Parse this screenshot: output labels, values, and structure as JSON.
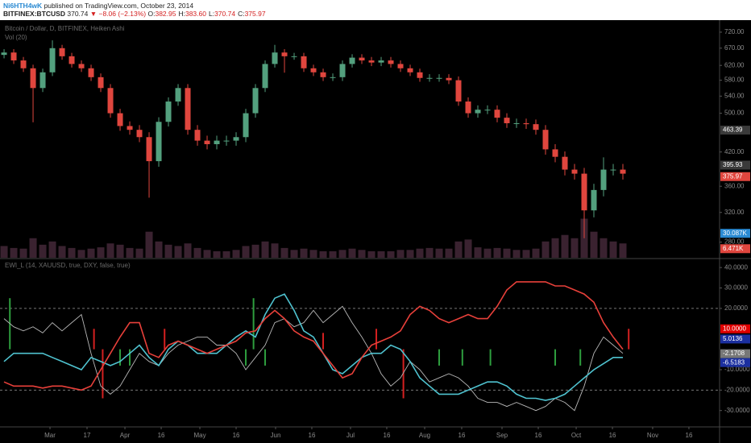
{
  "header": {
    "author": "Ni6HTH4wK",
    "published": "published on TradingView.com, October 23, 2014",
    "symbol": "BITFINEX:BTCUSD",
    "last": "370.74",
    "change": "▼ −8.06 (−2.13%)",
    "ohlc": [
      {
        "label": "O:",
        "value": "382.95"
      },
      {
        "label": "H:",
        "value": "383.60"
      },
      {
        "label": "L:",
        "value": "370.74"
      },
      {
        "label": "C:",
        "value": "375.97"
      }
    ]
  },
  "chart_data": [
    {
      "type": "candlestick",
      "title": "Bitcoin / Dollar, D, BITFINEX, Heiken Ashi",
      "volume_title": "Vol (20)",
      "up_color": "#53a07e",
      "down_color": "#e0463e",
      "log_scale": true,
      "xlim": [
        -0.42,
        74
      ],
      "ylim": [
        261,
        760
      ],
      "yticks": [
        {
          "value": 280,
          "label": "280.00"
        },
        {
          "value": 320,
          "label": "320.00"
        },
        {
          "value": 360,
          "label": "360.00"
        },
        {
          "value": 420,
          "label": "420.00"
        },
        {
          "value": 500,
          "label": "500.00"
        },
        {
          "value": 540,
          "label": "540.00"
        },
        {
          "value": 580,
          "label": "580.00"
        },
        {
          "value": 620,
          "label": "620.00"
        },
        {
          "value": 670,
          "label": "670.00"
        },
        {
          "value": 720,
          "label": "720.00"
        }
      ],
      "open": [
        650,
        657,
        634,
        612,
        560,
        601,
        670,
        646,
        624,
        612,
        588,
        560,
        500,
        472,
        464,
        449,
        403,
        481,
        527,
        560,
        464,
        442,
        435,
        442,
        442,
        449,
        500,
        560,
        624,
        657,
        646,
        646,
        612,
        601,
        588,
        588,
        624,
        642,
        634,
        628,
        634,
        624,
        612,
        601,
        586,
        586,
        586,
        580,
        527,
        500,
        508,
        508,
        490,
        478,
        478,
        476,
        464,
        425,
        411,
        388,
        381,
        323,
        354,
        388,
        388
      ],
      "high": [
        667,
        667,
        644,
        622,
        611,
        694,
        680,
        656,
        634,
        622,
        598,
        570,
        510,
        482,
        474,
        459,
        491,
        537,
        570,
        570,
        474,
        452,
        452,
        452,
        459,
        510,
        570,
        634,
        680,
        667,
        656,
        656,
        622,
        611,
        598,
        634,
        652,
        652,
        644,
        644,
        644,
        634,
        622,
        611,
        596,
        596,
        596,
        590,
        537,
        518,
        518,
        518,
        500,
        488,
        488,
        486,
        474,
        435,
        421,
        398,
        391,
        364,
        410,
        398,
        398
      ],
      "low": [
        640,
        624,
        602,
        480,
        550,
        591,
        636,
        614,
        602,
        578,
        550,
        490,
        462,
        454,
        439,
        342,
        393,
        471,
        517,
        454,
        432,
        425,
        425,
        432,
        432,
        439,
        490,
        550,
        614,
        600,
        636,
        602,
        591,
        578,
        578,
        578,
        614,
        624,
        618,
        618,
        614,
        602,
        591,
        576,
        576,
        576,
        570,
        517,
        490,
        490,
        498,
        480,
        468,
        468,
        466,
        454,
        415,
        401,
        378,
        371,
        285,
        313,
        344,
        378,
        371
      ],
      "close": [
        657,
        634,
        612,
        560,
        601,
        670,
        646,
        624,
        612,
        588,
        560,
        500,
        472,
        464,
        449,
        403,
        481,
        527,
        560,
        464,
        442,
        435,
        442,
        442,
        449,
        500,
        560,
        624,
        657,
        646,
        646,
        612,
        601,
        588,
        588,
        624,
        642,
        634,
        628,
        634,
        624,
        612,
        601,
        586,
        586,
        586,
        580,
        527,
        500,
        508,
        508,
        490,
        478,
        478,
        476,
        464,
        425,
        411,
        388,
        381,
        323,
        354,
        388,
        388,
        381
      ],
      "price_markers": [
        {
          "value": 463.39,
          "color": "#3a3a3a"
        },
        {
          "value": 395.93,
          "color": "#3a3a3a"
        },
        {
          "value": 375.97,
          "color": "#e0463e"
        }
      ],
      "volume": [
        18,
        15,
        14,
        30,
        20,
        25,
        18,
        15,
        12,
        14,
        16,
        22,
        20,
        15,
        14,
        40,
        25,
        20,
        18,
        22,
        15,
        12,
        10,
        10,
        12,
        18,
        20,
        25,
        22,
        15,
        12,
        14,
        12,
        10,
        10,
        12,
        14,
        12,
        10,
        10,
        10,
        12,
        12,
        14,
        15,
        14,
        14,
        25,
        28,
        16,
        14,
        15,
        14,
        12,
        12,
        14,
        25,
        30,
        35,
        30,
        60,
        40,
        30,
        25,
        22
      ],
      "volume_ylim": [
        0,
        365
      ],
      "volume_color": "#3a2230",
      "volume_markers": [
        {
          "value": 30.087,
          "label": "30.087K",
          "color": "#2a8ad2"
        },
        {
          "value": 6.471,
          "label": "6.471K",
          "color": "#e0463e"
        }
      ]
    },
    {
      "type": "line",
      "title": "EWI_L (14, XAUUSD, true, DXY, false, true)",
      "xlim": [
        -0.42,
        74
      ],
      "ylim": [
        -38,
        44
      ],
      "yticks": [
        {
          "value": -30,
          "label": "-30.0000"
        },
        {
          "value": -20,
          "label": "-20.0000"
        },
        {
          "value": -10,
          "label": "-10.0000"
        },
        {
          "value": 20,
          "label": "20.0000"
        },
        {
          "value": 30,
          "label": "30.0000"
        },
        {
          "value": 40,
          "label": "40.0000"
        }
      ],
      "levels": [
        20,
        -20
      ],
      "series": [
        {
          "color": "#b8b8b8",
          "values": [
            15,
            11,
            9,
            11,
            8,
            13,
            9,
            13,
            17,
            -2,
            -18,
            -22,
            -18,
            -10,
            -2,
            -6,
            -8,
            -2,
            2,
            4,
            6,
            6,
            2,
            2,
            -2,
            -10,
            -4,
            2,
            13,
            15,
            11,
            13,
            19,
            13,
            17,
            21,
            13,
            6,
            -2,
            -12,
            -18,
            -14,
            -6,
            -10,
            -16,
            -14,
            -12,
            -14,
            -18,
            -24,
            -26,
            -26,
            -28,
            -26,
            -28,
            -30,
            -28,
            -24,
            -26,
            -30,
            -18,
            -2,
            6,
            2,
            -2
          ]
        },
        {
          "color": "#4fc3d0",
          "values": [
            -6,
            -2,
            -2,
            -2,
            -2,
            -4,
            -6,
            -8,
            -10,
            -4,
            -6,
            -8,
            -6,
            -2,
            2,
            -4,
            -8,
            0,
            4,
            2,
            -2,
            -2,
            -2,
            2,
            6,
            9,
            6,
            17,
            25,
            27,
            19,
            9,
            6,
            -2,
            -10,
            -12,
            -8,
            -4,
            -2,
            -2,
            2,
            0,
            -6,
            -14,
            -18,
            -22,
            -22,
            -22,
            -20,
            -18,
            -16,
            -16,
            -18,
            -22,
            -24,
            -24,
            -25,
            -24,
            -22,
            -18,
            -14,
            -10,
            -7,
            -4,
            -4
          ]
        },
        {
          "color": "#e8403a",
          "values": [
            -16,
            -18,
            -18,
            -18,
            -19,
            -18,
            -18,
            -19,
            -20,
            -18,
            -10,
            -2,
            6,
            13,
            13,
            -2,
            -4,
            2,
            4,
            2,
            0,
            -2,
            0,
            2,
            4,
            8,
            9,
            15,
            19,
            15,
            9,
            6,
            4,
            -2,
            -8,
            -14,
            -12,
            -4,
            2,
            4,
            6,
            9,
            17,
            21,
            19,
            15,
            13,
            15,
            17,
            15,
            15,
            21,
            29,
            33,
            33,
            33,
            33,
            31,
            31,
            29,
            27,
            23,
            13,
            6,
            0
          ]
        }
      ],
      "signals": [
        {
          "x": 0.6,
          "value": 25,
          "color": "#2e9e3e"
        },
        {
          "x": 9.3,
          "value": 10,
          "color": "#d42020"
        },
        {
          "x": 10.2,
          "value": -24,
          "color": "#d42020"
        },
        {
          "x": 12,
          "value": -8,
          "color": "#2e9e3e"
        },
        {
          "x": 13,
          "value": -8,
          "color": "#2e9e3e"
        },
        {
          "x": 16.6,
          "value": 10,
          "color": "#d42020"
        },
        {
          "x": 25,
          "value": -8,
          "color": "#2e9e3e"
        },
        {
          "x": 25.8,
          "value": 25,
          "color": "#2e9e3e"
        },
        {
          "x": 27,
          "value": -8,
          "color": "#2e9e3e"
        },
        {
          "x": 33,
          "value": 8,
          "color": "#d42020"
        },
        {
          "x": 38.5,
          "value": 10,
          "color": "#d42020"
        },
        {
          "x": 41.3,
          "value": -24,
          "color": "#d42020"
        },
        {
          "x": 45,
          "value": -8,
          "color": "#2e9e3e"
        },
        {
          "x": 47.4,
          "value": -8,
          "color": "#2e9e3e"
        },
        {
          "x": 50.3,
          "value": -8,
          "color": "#2e9e3e"
        },
        {
          "x": 57,
          "value": -8,
          "color": "#2e9e3e"
        },
        {
          "x": 59.6,
          "value": -8,
          "color": "#2e9e3e"
        },
        {
          "x": 64.6,
          "value": 10,
          "color": "#d42020"
        }
      ],
      "markers": [
        {
          "value": 10,
          "label": "10.0000",
          "color": "#e00000"
        },
        {
          "value": 5.0136,
          "color": "#1b2fa0"
        },
        {
          "value": -2.1708,
          "color": "#777777"
        },
        {
          "value": -6.5183,
          "color": "#1b2fa0"
        }
      ],
      "xticks": [
        {
          "value": 4.75,
          "label": "Mar"
        },
        {
          "value": 8.58,
          "label": "17"
        },
        {
          "value": 12.5,
          "label": "Apr"
        },
        {
          "value": 16.25,
          "label": "16"
        },
        {
          "value": 20.25,
          "label": "May"
        },
        {
          "value": 24,
          "label": "16"
        },
        {
          "value": 28.08,
          "label": "Jun"
        },
        {
          "value": 31.83,
          "label": "16"
        },
        {
          "value": 35.83,
          "label": "Jul"
        },
        {
          "value": 39.58,
          "label": "16"
        },
        {
          "value": 43.5,
          "label": "Aug"
        },
        {
          "value": 47.33,
          "label": "16"
        },
        {
          "value": 51.5,
          "label": "Sep"
        },
        {
          "value": 55.25,
          "label": "16"
        },
        {
          "value": 59.17,
          "label": "Oct"
        },
        {
          "value": 62.92,
          "label": "16"
        },
        {
          "value": 67.08,
          "label": "Nov"
        },
        {
          "value": 70.83,
          "label": "16"
        }
      ]
    }
  ]
}
